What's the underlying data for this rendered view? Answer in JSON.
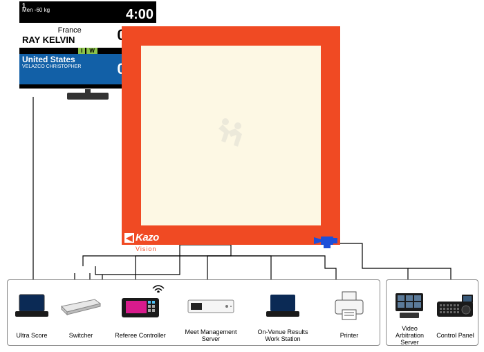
{
  "scoreboard": {
    "mat_number": "1",
    "category": "Men -60 kg",
    "timer": "4:00",
    "white": {
      "country": "France",
      "name": "RAY KELVIN",
      "score1": "0",
      "score2": "0"
    },
    "iw": {
      "i": "I",
      "w": "W"
    },
    "blue": {
      "country": "United States",
      "name": "VELAZCO CHRISTOPHER",
      "score1": "0",
      "score2": "0"
    }
  },
  "mat": {
    "brand": "Kazo",
    "brand_sub": "Vision",
    "outer_color": "#f04a23",
    "inner_color": "#fdf8e4"
  },
  "devices_rack1": [
    {
      "label": "Ultra Score"
    },
    {
      "label": "Switcher"
    },
    {
      "label": "Referee Controller"
    },
    {
      "label": "Meet Management\nServer"
    },
    {
      "label": "On-Venue Results\nWork Station"
    },
    {
      "label": "Printer"
    }
  ],
  "devices_rack2": [
    {
      "label": "Video Arbitration\nServer"
    },
    {
      "label": "Control Panel"
    }
  ],
  "colors": {
    "wire": "#000000",
    "camera": "#1e4fd8",
    "scoreboard_blue": "#1260a7",
    "iw_green": "#8bc34a"
  }
}
